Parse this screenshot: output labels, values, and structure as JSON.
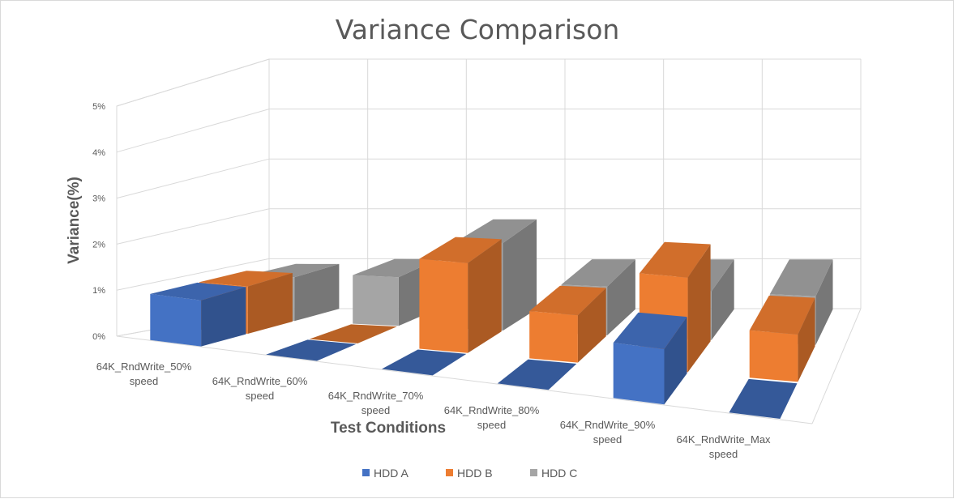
{
  "chart_data": {
    "type": "bar",
    "subtype": "3d-column",
    "title": "Variance Comparison",
    "xlabel": "Test Conditions",
    "ylabel": "Variance(%)",
    "ylim": [
      0,
      5
    ],
    "yticks": [
      "0%",
      "1%",
      "2%",
      "3%",
      "4%",
      "5%"
    ],
    "categories": [
      [
        "64K_RndWrite_50%",
        "speed"
      ],
      [
        "64K_RndWrite_60%",
        "speed"
      ],
      [
        "64K_RndWrite_70%",
        "speed"
      ],
      [
        "64K_RndWrite_80%",
        "speed"
      ],
      [
        "64K_RndWrite_90%",
        "speed"
      ],
      [
        "64K_RndWrite_Max",
        "speed"
      ]
    ],
    "series": [
      {
        "name": "HDD A",
        "color": "#4472c4",
        "values": [
          1.0,
          0.0,
          0.0,
          0.0,
          1.2,
          0.0
        ]
      },
      {
        "name": "HDD B",
        "color": "#ed7d31",
        "values": [
          1.0,
          0.0,
          1.9,
          1.0,
          2.0,
          1.0
        ]
      },
      {
        "name": "HDD C",
        "color": "#a5a5a5",
        "values": [
          0.9,
          1.0,
          1.8,
          1.0,
          1.0,
          1.0
        ]
      }
    ],
    "legend": "bottom",
    "grid": true
  }
}
